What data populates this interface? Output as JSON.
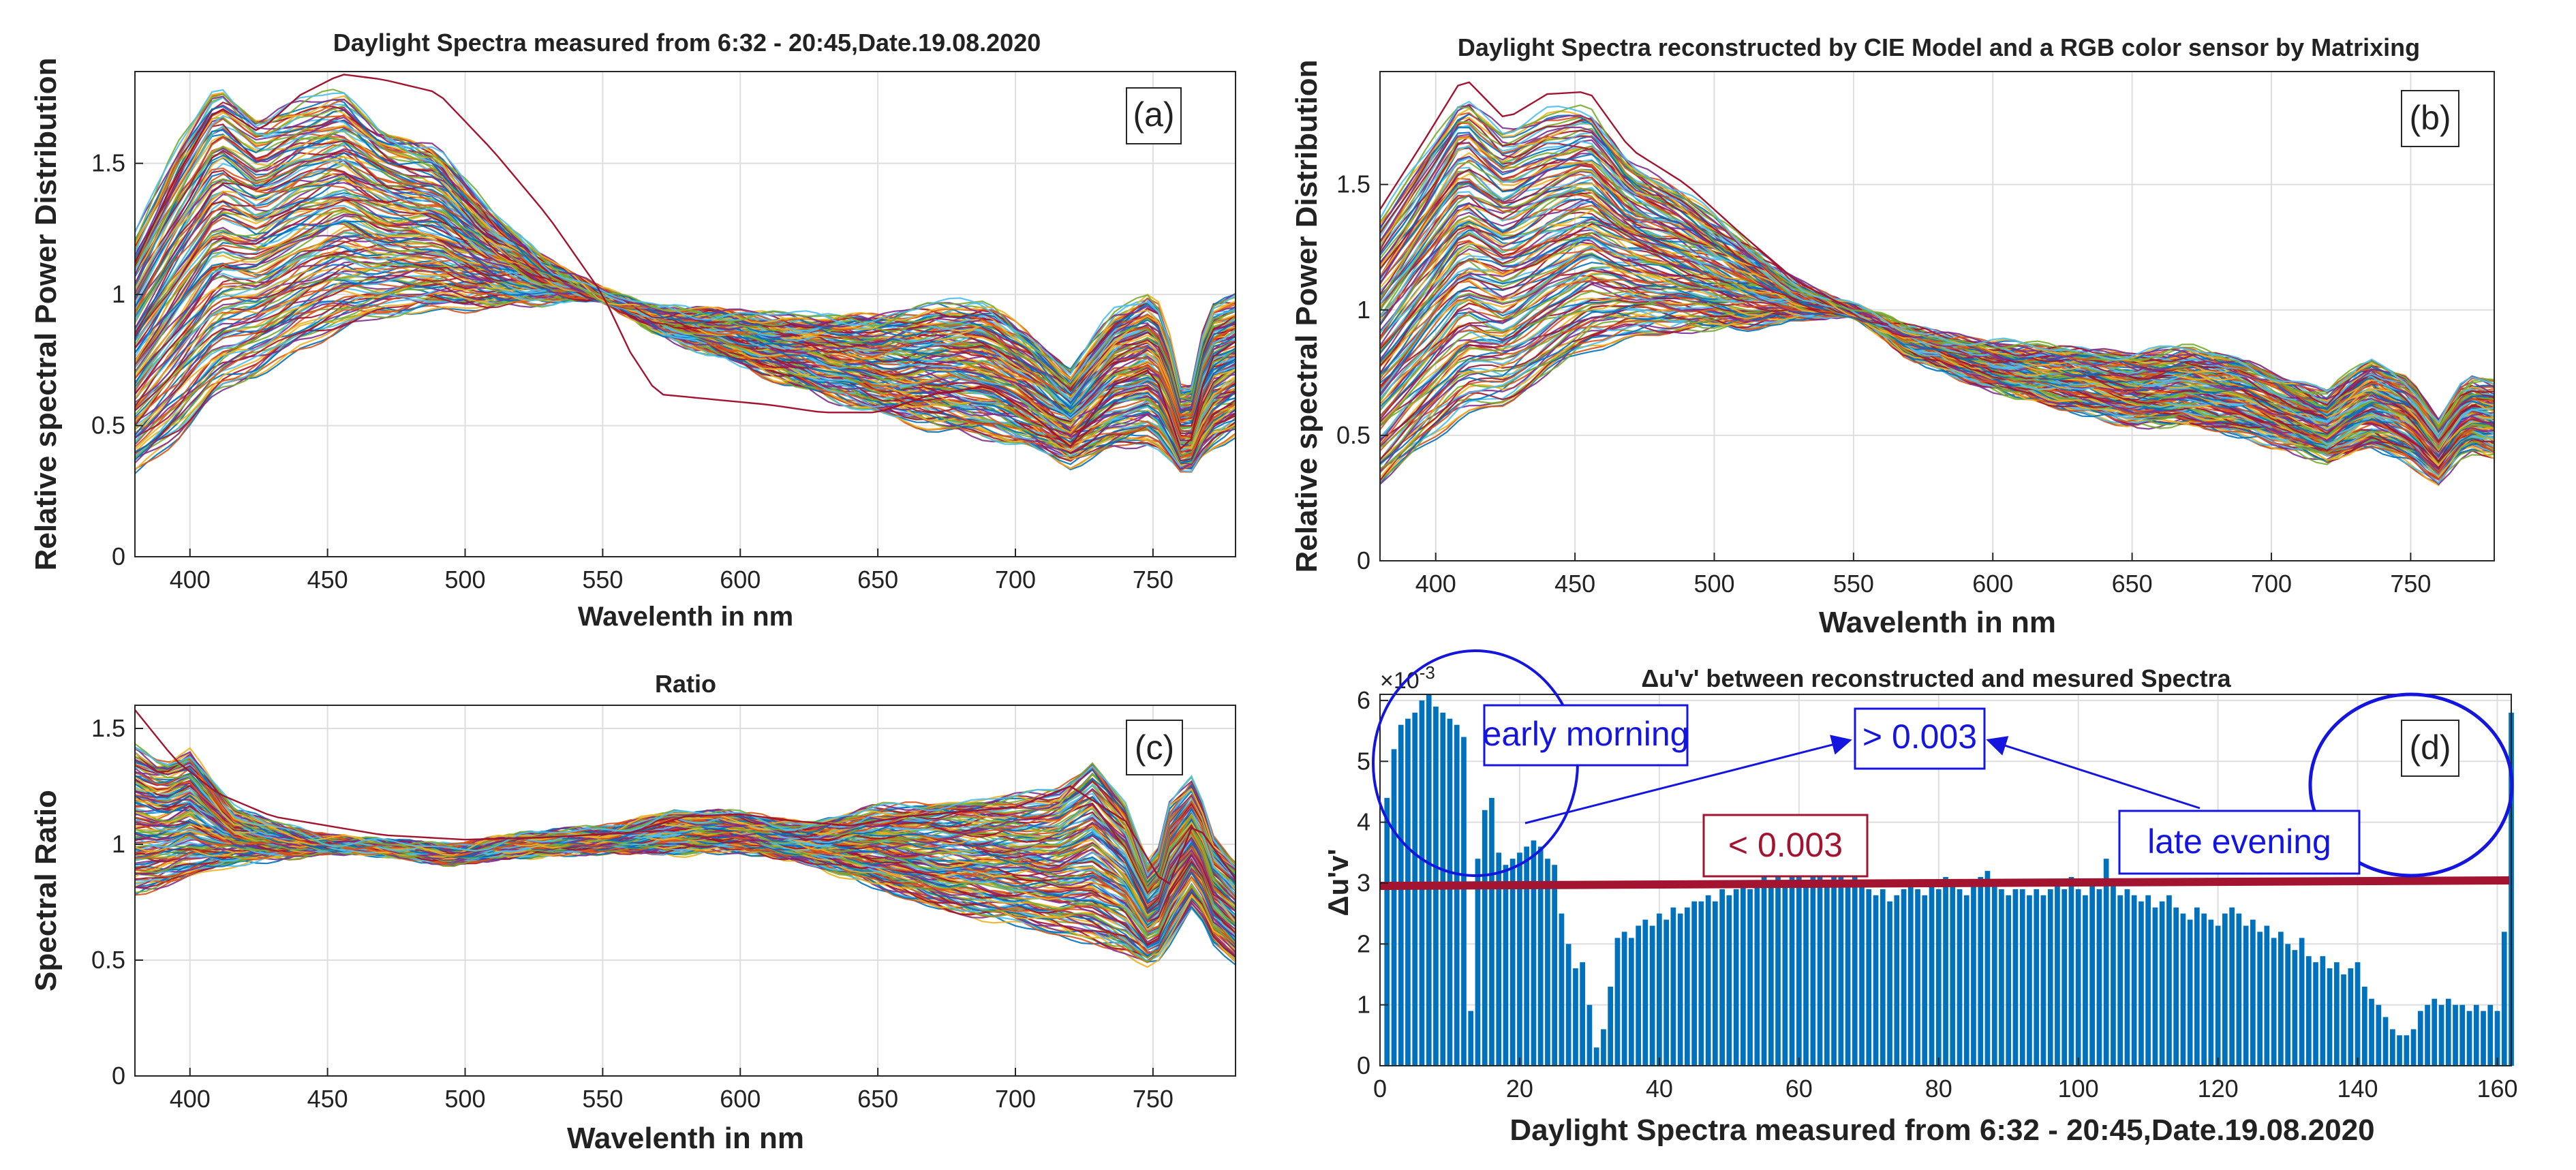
{
  "colors": {
    "palette": [
      "#0072BD",
      "#D95319",
      "#EDB120",
      "#7E2F8E",
      "#77AC30",
      "#4DBEEE",
      "#A2142F"
    ],
    "bar": "#0072BD",
    "threshold_line": "#A2142F",
    "annotation_blue": "#1515E0",
    "axis": "#262626",
    "grid": "#dedede"
  },
  "chart_data": [
    {
      "id": "a",
      "type": "line",
      "panel_label": "(a)",
      "title": "Daylight Spectra measured from 6:32 - 20:45,Date.19.08.2020",
      "xlabel": "Wavelenth in nm",
      "ylabel": "Relative spectral Power Distribution",
      "xlim": [
        380,
        780
      ],
      "ylim": [
        0,
        1.85
      ],
      "xticks": [
        "400",
        "450",
        "500",
        "550",
        "600",
        "650",
        "700",
        "750"
      ],
      "xtick_values": [
        400,
        450,
        500,
        550,
        600,
        650,
        700,
        750
      ],
      "yticks": [
        "0",
        "0.5",
        "1",
        "1.5"
      ],
      "ytick_values": [
        0,
        0.5,
        1,
        1.5
      ],
      "grid": true,
      "series_count": 160,
      "envelope": {
        "x": [
          380,
          395,
          410,
          425,
          440,
          455,
          470,
          490,
          510,
          530,
          550,
          570,
          590,
          610,
          630,
          650,
          670,
          690,
          705,
          720,
          735,
          750,
          755,
          762,
          770,
          780
        ],
        "low": [
          0.33,
          0.45,
          0.62,
          0.7,
          0.8,
          0.87,
          0.92,
          0.95,
          0.96,
          0.98,
          1.0,
          0.86,
          0.78,
          0.7,
          0.62,
          0.55,
          0.5,
          0.46,
          0.42,
          0.36,
          0.42,
          0.44,
          0.38,
          0.3,
          0.42,
          0.48
        ],
        "high": [
          1.22,
          1.55,
          1.8,
          1.66,
          1.73,
          1.77,
          1.62,
          1.55,
          1.3,
          1.12,
          1.0,
          0.94,
          0.93,
          0.92,
          0.91,
          0.91,
          0.96,
          0.96,
          0.84,
          0.7,
          0.92,
          1.0,
          0.88,
          0.55,
          0.95,
          0.99
        ]
      },
      "outlier": {
        "x": [
          380,
          395,
          410,
          425,
          440,
          455,
          470,
          490,
          510,
          530,
          550,
          560,
          570,
          590,
          610,
          630,
          650,
          670,
          690,
          705,
          720,
          735,
          750,
          762,
          770,
          780
        ],
        "y": [
          1.12,
          1.45,
          1.72,
          1.62,
          1.76,
          1.84,
          1.82,
          1.77,
          1.55,
          1.3,
          1.0,
          0.78,
          0.62,
          0.6,
          0.58,
          0.55,
          0.55,
          0.62,
          0.65,
          0.55,
          0.42,
          0.65,
          0.72,
          0.35,
          0.75,
          0.82
        ]
      }
    },
    {
      "id": "b",
      "type": "line",
      "panel_label": "(b)",
      "title": "Daylight Spectra reconstructed by CIE Model and a RGB color sensor by Matrixing",
      "xlabel": "Wavelenth in nm",
      "ylabel": "Relative spectral Power Distribution",
      "xlim": [
        380,
        780
      ],
      "ylim": [
        0,
        1.95
      ],
      "xticks": [
        "400",
        "450",
        "500",
        "550",
        "600",
        "650",
        "700",
        "750"
      ],
      "xtick_values": [
        400,
        450,
        500,
        550,
        600,
        650,
        700,
        750
      ],
      "yticks": [
        "0",
        "0.5",
        "1",
        "1.5"
      ],
      "ytick_values": [
        0,
        0.5,
        1,
        1.5
      ],
      "grid": true,
      "series_count": 160,
      "envelope": {
        "x": [
          380,
          395,
          410,
          425,
          440,
          455,
          470,
          490,
          510,
          530,
          550,
          570,
          590,
          610,
          630,
          650,
          670,
          690,
          705,
          720,
          735,
          750,
          760,
          770,
          780
        ],
        "low": [
          0.3,
          0.45,
          0.6,
          0.62,
          0.74,
          0.85,
          0.9,
          0.92,
          0.93,
          0.97,
          1.0,
          0.82,
          0.73,
          0.66,
          0.6,
          0.55,
          0.55,
          0.5,
          0.46,
          0.4,
          0.46,
          0.4,
          0.32,
          0.45,
          0.42
        ],
        "high": [
          1.35,
          1.6,
          1.86,
          1.7,
          1.78,
          1.8,
          1.58,
          1.45,
          1.27,
          1.1,
          1.0,
          0.92,
          0.88,
          0.85,
          0.84,
          0.82,
          0.84,
          0.8,
          0.72,
          0.66,
          0.8,
          0.72,
          0.56,
          0.72,
          0.7
        ]
      },
      "outlier": {
        "x": [
          380,
          395,
          410,
          425,
          440,
          455,
          470,
          490,
          510,
          530,
          550
        ],
        "y": [
          1.4,
          1.66,
          1.93,
          1.76,
          1.86,
          1.87,
          1.64,
          1.5,
          1.3,
          1.11,
          1.0
        ]
      }
    },
    {
      "id": "c",
      "type": "line",
      "panel_label": "(c)",
      "title": "Ratio",
      "xlabel": "Wavelenth in nm",
      "ylabel": "Spectral Ratio",
      "xlim": [
        380,
        780
      ],
      "ylim": [
        0,
        1.6
      ],
      "xticks": [
        "400",
        "450",
        "500",
        "550",
        "600",
        "650",
        "700",
        "750"
      ],
      "xtick_values": [
        400,
        450,
        500,
        550,
        600,
        650,
        700,
        750
      ],
      "yticks": [
        "0",
        "0.5",
        "1",
        "1.5"
      ],
      "ytick_values": [
        0,
        0.5,
        1,
        1.5
      ],
      "grid": true,
      "series_count": 160,
      "envelope": {
        "x": [
          380,
          390,
          400,
          415,
          430,
          450,
          470,
          495,
          520,
          550,
          575,
          600,
          625,
          650,
          675,
          700,
          715,
          728,
          740,
          750,
          755,
          765,
          772,
          780
        ],
        "low": [
          0.8,
          0.83,
          0.86,
          0.92,
          0.95,
          0.98,
          0.97,
          0.93,
          0.96,
          0.98,
          0.97,
          0.98,
          0.93,
          0.82,
          0.72,
          0.66,
          0.62,
          0.58,
          0.54,
          0.47,
          0.55,
          0.75,
          0.58,
          0.5
        ],
        "high": [
          1.42,
          1.35,
          1.4,
          1.15,
          1.08,
          1.02,
          1.0,
          0.98,
          1.03,
          1.06,
          1.13,
          1.12,
          1.08,
          1.15,
          1.18,
          1.2,
          1.22,
          1.36,
          1.18,
          0.85,
          1.15,
          1.28,
          1.02,
          0.92
        ]
      },
      "outlier": {
        "x": [
          380,
          395,
          410,
          430,
          450,
          470,
          500,
          530,
          560,
          580,
          600,
          620,
          640,
          660,
          680,
          700,
          720,
          740,
          755,
          765,
          780
        ],
        "y": [
          1.58,
          1.36,
          1.22,
          1.12,
          1.08,
          1.04,
          1.02,
          1.03,
          1.05,
          1.12,
          1.13,
          1.1,
          1.08,
          1.12,
          1.14,
          1.16,
          1.25,
          1.1,
          0.8,
          1.1,
          0.85
        ]
      }
    },
    {
      "id": "d",
      "type": "bar",
      "panel_label": "(d)",
      "title": "Δu'v' between reconstructed and mesured Spectra",
      "xlabel": "Daylight Spectra measured from 6:32 - 20:45,Date.19.08.2020",
      "ylabel": "Δu'v'",
      "y_exponent": "×10",
      "y_exponent_power": "-3",
      "xlim": [
        0,
        162
      ],
      "ylim": [
        0,
        6.1
      ],
      "xticks": [
        "0",
        "20",
        "40",
        "60",
        "80",
        "100",
        "120",
        "140",
        "160"
      ],
      "xtick_values": [
        0,
        20,
        40,
        60,
        80,
        100,
        120,
        140,
        160
      ],
      "yticks": [
        "0",
        "1",
        "2",
        "3",
        "4",
        "5",
        "6"
      ],
      "ytick_values": [
        0,
        1,
        2,
        3,
        4,
        5,
        6
      ],
      "grid": true,
      "values": [
        4.4,
        5.2,
        5.6,
        5.7,
        5.8,
        6.0,
        6.1,
        5.9,
        5.8,
        5.7,
        5.6,
        5.4,
        0.9,
        3.4,
        4.2,
        4.4,
        3.5,
        3.3,
        3.4,
        3.5,
        3.6,
        3.7,
        3.6,
        3.4,
        3.3,
        2.5,
        2.0,
        1.6,
        1.7,
        1.0,
        0.3,
        0.6,
        1.3,
        2.1,
        2.2,
        2.1,
        2.3,
        2.4,
        2.3,
        2.5,
        2.4,
        2.6,
        2.5,
        2.6,
        2.7,
        2.7,
        2.8,
        2.7,
        2.9,
        2.8,
        2.9,
        3.0,
        2.9,
        3.0,
        3.1,
        3.0,
        3.1,
        3.0,
        3.2,
        3.1,
        3.0,
        3.2,
        3.1,
        3.0,
        3.1,
        3.2,
        3.0,
        3.1,
        3.0,
        2.9,
        2.8,
        2.9,
        2.7,
        2.8,
        2.9,
        3.0,
        2.9,
        2.8,
        3.0,
        2.9,
        3.1,
        3.0,
        2.9,
        2.8,
        3.0,
        3.1,
        3.2,
        3.0,
        2.9,
        2.8,
        2.9,
        2.9,
        2.8,
        2.9,
        2.8,
        2.9,
        3.0,
        2.9,
        3.1,
        2.9,
        2.8,
        3.0,
        2.9,
        3.4,
        3.0,
        2.8,
        2.9,
        2.8,
        2.7,
        2.8,
        2.6,
        2.7,
        2.8,
        2.6,
        2.5,
        2.4,
        2.6,
        2.5,
        2.4,
        2.3,
        2.5,
        2.6,
        2.5,
        2.3,
        2.4,
        2.2,
        2.3,
        2.1,
        2.2,
        2.0,
        1.9,
        2.1,
        1.8,
        1.7,
        1.8,
        1.6,
        1.7,
        1.5,
        1.6,
        1.7,
        1.3,
        1.1,
        1.0,
        0.8,
        0.6,
        0.5,
        0.5,
        0.6,
        0.9,
        1.0,
        1.1,
        1.0,
        1.1,
        1.0,
        1.0,
        0.9,
        1.0,
        0.9,
        1.0,
        0.9,
        2.2,
        5.8
      ],
      "threshold": {
        "value": 3.0,
        "label": "< 0.003"
      },
      "annotations": {
        "early_morning": "early morning",
        "late_evening": "late evening",
        "above_threshold": "> 0.003"
      }
    }
  ]
}
